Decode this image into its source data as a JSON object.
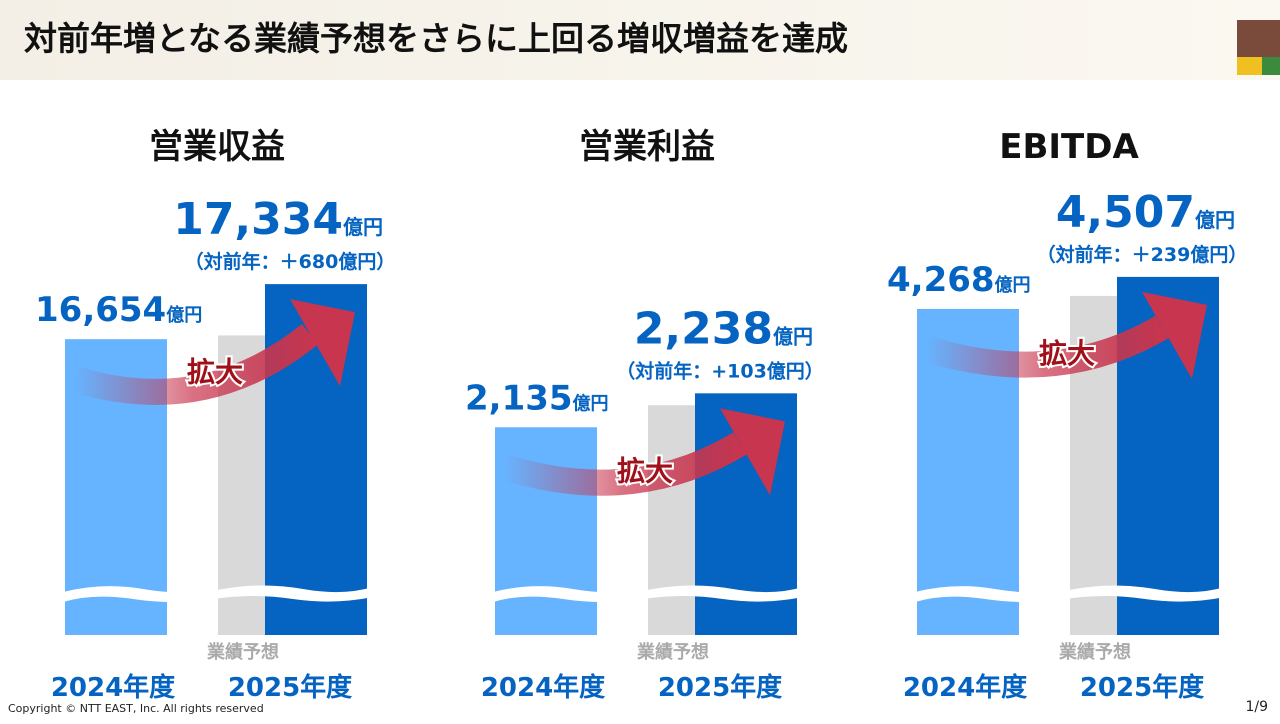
{
  "header": {
    "title": "対前年増となる業績予想をさらに上回る増収増益を達成"
  },
  "footer": {
    "copyright": "Copyright © NTT EAST, Inc. All rights reserved",
    "page": "1/9"
  },
  "chart_data": [
    {
      "type": "bar",
      "title": "営業収益",
      "categories": [
        "2024年度",
        "2025年度"
      ],
      "values": [
        16654,
        17334
      ],
      "value_labels": [
        "16,654",
        "17,334"
      ],
      "unit": "億円",
      "colors": [
        "#66b3ff",
        "#0563c1"
      ],
      "change_label": "（対前年：＋680億円）",
      "forecast": {
        "name": "業績予想",
        "value": 16700,
        "color": "#d9d9d9"
      },
      "annotation": "拡大",
      "ylim": [
        13000,
        18620
      ]
    },
    {
      "type": "bar",
      "title": "営業利益",
      "categories": [
        "2024年度",
        "2025年度"
      ],
      "values": [
        2135,
        2238
      ],
      "value_labels": [
        "2,135",
        "2,238"
      ],
      "unit": "億円",
      "colors": [
        "#66b3ff",
        "#0563c1"
      ],
      "change_label": "（対前年：+103億円）",
      "forecast": {
        "name": "業績予想",
        "value": 2202,
        "color": "#d9d9d9"
      },
      "annotation": "拡大",
      "ylim": [
        1505,
        2885
      ]
    },
    {
      "type": "bar",
      "title": "EBITDA",
      "categories": [
        "2024年度",
        "2025年度"
      ],
      "values": [
        4268,
        4507
      ],
      "value_labels": [
        "4,268",
        "4,507"
      ],
      "unit": "億円",
      "colors": [
        "#66b3ff",
        "#0563c1"
      ],
      "change_label": "（対前年：＋239億円）",
      "forecast": {
        "name": "業績予想",
        "value": 4365,
        "color": "#d9d9d9"
      },
      "annotation": "拡大",
      "ylim": [
        1835,
        5230
      ]
    }
  ]
}
